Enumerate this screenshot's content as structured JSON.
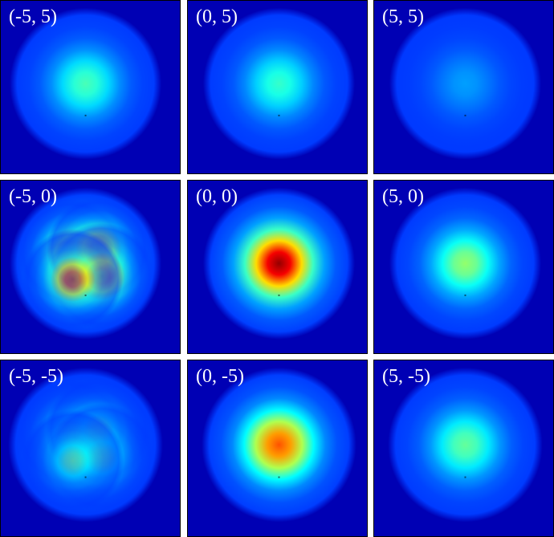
{
  "colors": {
    "background": "#0000b4",
    "border": "#000000",
    "label_text": "#ffffff",
    "page": "#ffffff"
  },
  "colormap": "jet",
  "panels": [
    {
      "label": "(-5, 5)",
      "peak": 0.42,
      "blob": "soft"
    },
    {
      "label": "(0, 5)",
      "peak": 0.4,
      "blob": "soft"
    },
    {
      "label": "(5, 5)",
      "peak": 0.24,
      "blob": "soft"
    },
    {
      "label": "(-5, 0)",
      "peak": 0.93,
      "blob": "lumpy"
    },
    {
      "label": "(0, 0)",
      "peak": 1.0,
      "blob": "round"
    },
    {
      "label": "(5, 0)",
      "peak": 0.5,
      "blob": "soft"
    },
    {
      "label": "(-5, -5)",
      "peak": 0.48,
      "blob": "lumpy"
    },
    {
      "label": "(0, -5)",
      "peak": 0.8,
      "blob": "round"
    },
    {
      "label": "(5, -5)",
      "peak": 0.45,
      "blob": "soft"
    }
  ]
}
